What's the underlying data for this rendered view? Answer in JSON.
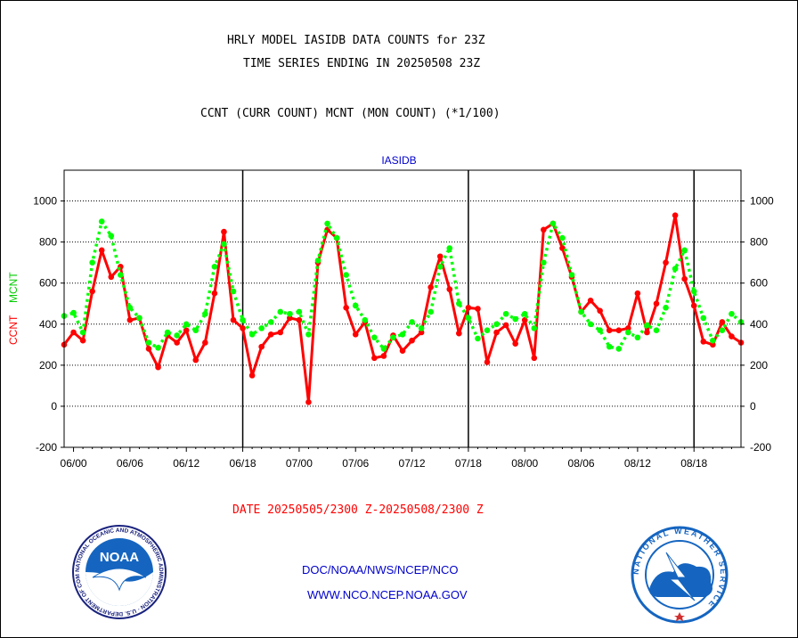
{
  "titles": {
    "line1": "HRLY MODEL IASIDB DATA COUNTS for 23Z",
    "line2": "TIME SERIES ENDING IN 20250508 23Z",
    "line3": "CCNT (CURR COUNT) MCNT (MON COUNT) (*1/100)"
  },
  "footer": {
    "date_range": "DATE 20250505/2300 Z-20250508/2300 Z",
    "org_path": "DOC/NOAA/NWS/NCEP/NCO",
    "website": "WWW.NCO.NCEP.NOAA.GOV"
  },
  "logos": {
    "left": {
      "text": "NOAA",
      "ring_text": "NATIONAL OCEANIC AND ATMOSPHERIC ADMINISTRATION · U.S. DEPARTMENT OF COMMERCE"
    },
    "right": {
      "ring_text": "NATIONAL WEATHER SERVICE"
    }
  },
  "chart_data": {
    "type": "line",
    "title": "IASIDB",
    "ylabel_left": "CCNT",
    "ylabel_right": "MCNT",
    "ylim": [
      -200,
      1150
    ],
    "yticks": [
      -200,
      0,
      200,
      400,
      600,
      800,
      1000
    ],
    "xlim": [
      -1,
      71
    ],
    "x_tick_positions": [
      0,
      6,
      12,
      18,
      24,
      30,
      36,
      42,
      48,
      54,
      60,
      66
    ],
    "x_tick_labels": [
      "06/00",
      "06/06",
      "06/12",
      "06/18",
      "07/00",
      "07/06",
      "07/12",
      "07/18",
      "08/00",
      "08/06",
      "08/12",
      "08/18"
    ],
    "day_dividers": [
      18,
      42,
      66
    ],
    "grid": "horizontal",
    "colors": {
      "CCNT": "#ff0000",
      "MCNT": "#00ff00"
    },
    "series": [
      {
        "name": "CCNT",
        "style": "solid",
        "x": [
          -1,
          0,
          1,
          2,
          3,
          4,
          5,
          6,
          7,
          8,
          9,
          10,
          11,
          12,
          13,
          14,
          15,
          16,
          17,
          18,
          19,
          20,
          21,
          22,
          23,
          24,
          25,
          26,
          27,
          28,
          29,
          30,
          31,
          32,
          33,
          34,
          35,
          36,
          37,
          38,
          39,
          40,
          41,
          42,
          43,
          44,
          45,
          46,
          47,
          48,
          49,
          50,
          51,
          52,
          53,
          54,
          55,
          56,
          57,
          58,
          59,
          60,
          61,
          62,
          63,
          64,
          65,
          66,
          67,
          68,
          69,
          70,
          71
        ],
        "values": [
          300,
          360,
          320,
          560,
          760,
          630,
          680,
          420,
          430,
          280,
          190,
          345,
          310,
          370,
          225,
          310,
          550,
          850,
          420,
          380,
          150,
          290,
          350,
          360,
          430,
          420,
          20,
          700,
          860,
          820,
          480,
          350,
          410,
          235,
          245,
          345,
          270,
          320,
          360,
          580,
          730,
          570,
          355,
          480,
          475,
          215,
          360,
          395,
          305,
          420,
          235,
          860,
          890,
          770,
          630,
          460,
          515,
          465,
          370,
          370,
          380,
          550,
          360,
          500,
          700,
          930,
          620,
          490,
          315,
          300,
          410,
          340,
          310
        ]
      },
      {
        "name": "MCNT",
        "style": "dotted",
        "x": [
          -1,
          0,
          1,
          2,
          3,
          4,
          5,
          6,
          7,
          8,
          9,
          10,
          11,
          12,
          13,
          14,
          15,
          16,
          17,
          18,
          19,
          20,
          21,
          22,
          23,
          24,
          25,
          26,
          27,
          28,
          29,
          30,
          31,
          32,
          33,
          34,
          35,
          36,
          37,
          38,
          39,
          40,
          41,
          42,
          43,
          44,
          45,
          46,
          47,
          48,
          49,
          50,
          51,
          52,
          53,
          54,
          55,
          56,
          57,
          58,
          59,
          60,
          61,
          62,
          63,
          64,
          65,
          66,
          67,
          68,
          69,
          70,
          71
        ],
        "values": [
          440,
          455,
          360,
          700,
          900,
          830,
          640,
          480,
          430,
          310,
          285,
          360,
          345,
          400,
          370,
          450,
          680,
          790,
          560,
          420,
          350,
          380,
          410,
          460,
          450,
          460,
          350,
          710,
          890,
          820,
          640,
          490,
          420,
          335,
          280,
          335,
          350,
          410,
          380,
          460,
          680,
          770,
          500,
          430,
          330,
          370,
          400,
          450,
          425,
          450,
          380,
          700,
          890,
          820,
          640,
          460,
          400,
          370,
          290,
          280,
          360,
          335,
          395,
          370,
          480,
          670,
          760,
          560,
          430,
          320,
          370,
          450,
          410
        ]
      }
    ]
  }
}
